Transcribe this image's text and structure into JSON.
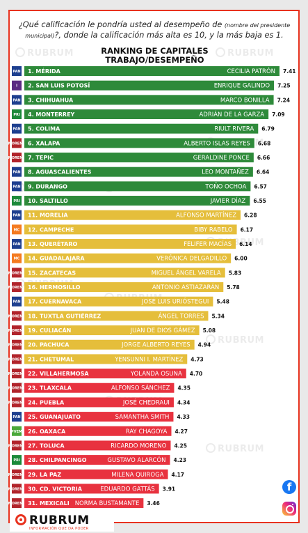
{
  "question": {
    "part1": "¿Qué calificación le pondría usted al desempeño de",
    "small": "(nombre del presidente municipal)",
    "part2": "?, donde la calificación más alta es 10, y la más baja es 1."
  },
  "watermark": "RUBRUM",
  "social": {
    "facebook": "facebook-icon",
    "instagram": "instagram-icon"
  },
  "brand": {
    "name": "RUBRUM",
    "tagline": "INFORMACIÓN QUE DA PODER"
  },
  "colors": {
    "green": "#2e8a3a",
    "yellow": "#e5be3b",
    "red": "#e8323f",
    "pan": "#1d3f8f",
    "pri": "#1b8a3a",
    "morena": "#b1242b",
    "mc": "#f47b20",
    "verde": "#4aa83a",
    "independiente": "#5a2a82"
  },
  "chart_data": {
    "type": "bar",
    "orientation": "horizontal",
    "title": "RANKING DE CAPITALES",
    "subtitle": "TRABAJO/DESEMPEÑO",
    "xlim": [
      0,
      7.5
    ],
    "grid": false,
    "legend": "none",
    "bars": [
      {
        "rank": "1. MÉRIDA",
        "name": "CECILIA PATRÓN",
        "value": 7.41,
        "value_label": "7.41",
        "party": "pan",
        "party_label": "PAN",
        "band": "green"
      },
      {
        "rank": "2. SAN LUIS POTOSÍ",
        "name": "ENRIQUE GALINDO",
        "value": 7.25,
        "value_label": "7.25",
        "party": "independiente",
        "party_label": "I",
        "band": "green"
      },
      {
        "rank": "3. CHIHUAHUA",
        "name": "MARCO BONILLA",
        "value": 7.24,
        "value_label": "7.24",
        "party": "pan",
        "party_label": "PAN",
        "band": "green"
      },
      {
        "rank": "4. MONTERREY",
        "name": "ADRIÁN DE LA GARZA",
        "value": 7.09,
        "value_label": "7.09",
        "party": "pri",
        "party_label": "PRI",
        "band": "green"
      },
      {
        "rank": "5. COLIMA",
        "name": "RIULT RIVERA",
        "value": 6.79,
        "value_label": "6.79",
        "party": "pan",
        "party_label": "PAN",
        "band": "green"
      },
      {
        "rank": "6. XALAPA",
        "name": "ALBERTO ISLAS REYES",
        "value": 6.68,
        "value_label": "6.68",
        "party": "morena",
        "party_label": "MORENA",
        "band": "green"
      },
      {
        "rank": "7. TEPIC",
        "name": "GERALDINE PONCE",
        "value": 6.66,
        "value_label": "6.66",
        "party": "morena",
        "party_label": "MORENA",
        "band": "green"
      },
      {
        "rank": "8. AGUASCALIENTES",
        "name": "LEO MONTAÑEZ",
        "value": 6.64,
        "value_label": "6.64",
        "party": "pan",
        "party_label": "PAN",
        "band": "green"
      },
      {
        "rank": "9. DURANGO",
        "name": "TOÑO OCHOA",
        "value": 6.57,
        "value_label": "6.57",
        "party": "pan",
        "party_label": "PAN",
        "band": "green"
      },
      {
        "rank": "10. SALTILLO",
        "name": "JAVIER DÍAZ",
        "value": 6.55,
        "value_label": "6.55",
        "party": "pri",
        "party_label": "PRI",
        "band": "green"
      },
      {
        "rank": "11. MORELIA",
        "name": "ALFONSO MARTÍNEZ",
        "value": 6.28,
        "value_label": "6.28",
        "party": "pan",
        "party_label": "PAN",
        "band": "yellow"
      },
      {
        "rank": "12. CAMPECHE",
        "name": "BIBY RABELO",
        "value": 6.17,
        "value_label": "6.17",
        "party": "mc",
        "party_label": "MC",
        "band": "yellow"
      },
      {
        "rank": "13. QUERÉTARO",
        "name": "FELIFER MACÍAS",
        "value": 6.14,
        "value_label": "6.14",
        "party": "pan",
        "party_label": "PAN",
        "band": "yellow"
      },
      {
        "rank": "14. GUADALAJARA",
        "name": "VERÓNICA DELGADILLO",
        "value": 6.0,
        "value_label": "6.00",
        "party": "mc",
        "party_label": "MC",
        "band": "yellow"
      },
      {
        "rank": "15. ZACATECAS",
        "name": "MIGUEL ÁNGEL VARELA",
        "value": 5.83,
        "value_label": "5.83",
        "party": "morena",
        "party_label": "MORENA",
        "band": "yellow"
      },
      {
        "rank": "16. HERMOSILLO",
        "name": "ANTONIO ASTIAZARÁN",
        "value": 5.78,
        "value_label": "5.78",
        "party": "morena",
        "party_label": "MORENA",
        "band": "yellow"
      },
      {
        "rank": "17. CUERNAVACA",
        "name": "JOSÉ LUIS URIÓSTEGUI",
        "value": 5.48,
        "value_label": "5.48",
        "party": "pan",
        "party_label": "PAN",
        "band": "yellow"
      },
      {
        "rank": "18. TUXTLA GUTIÉRREZ",
        "name": "ÁNGEL TORRES",
        "value": 5.34,
        "value_label": "5.34",
        "party": "morena",
        "party_label": "MORENA",
        "band": "yellow"
      },
      {
        "rank": "19. CULIACÁN",
        "name": "JUAN DE DIOS GÁMEZ",
        "value": 5.08,
        "value_label": "5.08",
        "party": "morena",
        "party_label": "MORENA",
        "band": "yellow"
      },
      {
        "rank": "20. PACHUCA",
        "name": "JORGE ALBERTO REYES",
        "value": 4.94,
        "value_label": "4.94",
        "party": "morena",
        "party_label": "MORENA",
        "band": "yellow"
      },
      {
        "rank": "21. CHETUMAL",
        "name": "YENSUNNI I. MARTÍNEZ",
        "value": 4.73,
        "value_label": "4.73",
        "party": "morena",
        "party_label": "MORENA",
        "band": "yellow"
      },
      {
        "rank": "22. VILLAHERMOSA",
        "name": "YOLANDA OSUNA",
        "value": 4.7,
        "value_label": "4.70",
        "party": "morena",
        "party_label": "MORENA",
        "band": "red"
      },
      {
        "rank": "23. TLAXCALA",
        "name": "ALFONSO SÁNCHEZ",
        "value": 4.35,
        "value_label": "4.35",
        "party": "morena",
        "party_label": "MORENA",
        "band": "red"
      },
      {
        "rank": "24. PUEBLA",
        "name": "JOSÉ CHEDRAUI",
        "value": 4.34,
        "value_label": "4.34",
        "party": "morena",
        "party_label": "MORENA",
        "band": "red"
      },
      {
        "rank": "25. GUANAJUATO",
        "name": "SAMANTHA SMITH",
        "value": 4.33,
        "value_label": "4.33",
        "party": "pan",
        "party_label": "PAN",
        "band": "red"
      },
      {
        "rank": "26. OAXACA",
        "name": "RAY CHAGOYA",
        "value": 4.27,
        "value_label": "4.27",
        "party": "verde",
        "party_label": "PVEM",
        "band": "red"
      },
      {
        "rank": "27. TOLUCA",
        "name": "RICARDO MORENO",
        "value": 4.25,
        "value_label": "4.25",
        "party": "morena",
        "party_label": "MORENA",
        "band": "red"
      },
      {
        "rank": "28. CHILPANCINGO",
        "name": "GUSTAVO ALARCÓN",
        "value": 4.23,
        "value_label": "4.23",
        "party": "pri",
        "party_label": "PRI",
        "band": "red"
      },
      {
        "rank": "29. LA PAZ",
        "name": "MILENA QUIROGA",
        "value": 4.17,
        "value_label": "4.17",
        "party": "morena",
        "party_label": "MORENA",
        "band": "red"
      },
      {
        "rank": "30. CD. VICTORIA",
        "name": "EDUARDO GATTÁS",
        "value": 3.91,
        "value_label": "3.91",
        "party": "morena",
        "party_label": "MORENA",
        "band": "red"
      },
      {
        "rank": "31. MEXICALI",
        "name": "NORMA BUSTAMANTE",
        "value": 3.46,
        "value_label": "3.46",
        "party": "morena",
        "party_label": "MORENA",
        "band": "red"
      }
    ]
  }
}
